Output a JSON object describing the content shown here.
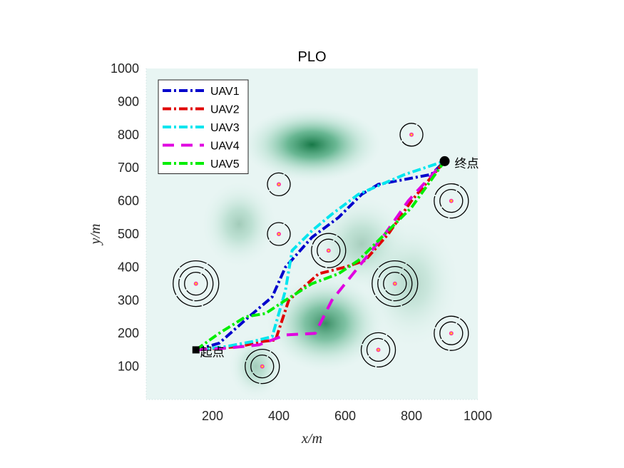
{
  "chart_data": {
    "type": "line",
    "title": "PLO",
    "xlabel": "x/m",
    "ylabel": "y/m",
    "xlim": [
      0,
      1000
    ],
    "ylim": [
      0,
      1000
    ],
    "xticks": [
      200,
      400,
      600,
      800,
      1000
    ],
    "yticks": [
      100,
      200,
      300,
      400,
      500,
      600,
      700,
      800,
      900,
      1000
    ],
    "legend_position": "top-left",
    "start": {
      "label": "起点",
      "x": 150,
      "y": 150
    },
    "goal": {
      "label": "终点",
      "x": 900,
      "y": 720
    },
    "series": [
      {
        "name": "UAV1",
        "color": "#0000cc",
        "style": "dashdot",
        "x": [
          150,
          220,
          310,
          380,
          420,
          500,
          580,
          650,
          700,
          860,
          900
        ],
        "y": [
          150,
          170,
          250,
          310,
          400,
          490,
          550,
          620,
          650,
          680,
          720
        ]
      },
      {
        "name": "UAV2",
        "color": "#e00000",
        "style": "dashdot",
        "x": [
          150,
          280,
          350,
          390,
          430,
          520,
          600,
          660,
          730,
          800,
          900
        ],
        "y": [
          150,
          160,
          175,
          180,
          300,
          380,
          400,
          420,
          500,
          600,
          720
        ]
      },
      {
        "name": "UAV3",
        "color": "#00e5ee",
        "style": "dashdot",
        "x": [
          150,
          240,
          320,
          380,
          420,
          440,
          500,
          560,
          640,
          780,
          900
        ],
        "y": [
          150,
          160,
          175,
          190,
          330,
          450,
          510,
          560,
          620,
          680,
          720
        ]
      },
      {
        "name": "UAV4",
        "color": "#e000e0",
        "style": "dashed",
        "x": [
          150,
          240,
          340,
          420,
          510,
          560,
          640,
          720,
          790,
          900
        ],
        "y": [
          150,
          155,
          165,
          195,
          200,
          300,
          400,
          500,
          600,
          720
        ]
      },
      {
        "name": "UAV5",
        "color": "#00ee00",
        "style": "dashdot",
        "x": [
          150,
          220,
          300,
          360,
          420,
          500,
          580,
          640,
          720,
          800,
          900
        ],
        "y": [
          150,
          200,
          250,
          260,
          300,
          350,
          380,
          420,
          500,
          580,
          720
        ]
      }
    ],
    "threats": [
      {
        "x": 150,
        "y": 350,
        "rings": 3
      },
      {
        "x": 350,
        "y": 100,
        "rings": 2
      },
      {
        "x": 400,
        "y": 650,
        "rings": 1
      },
      {
        "x": 400,
        "y": 500,
        "rings": 1
      },
      {
        "x": 550,
        "y": 450,
        "rings": 2
      },
      {
        "x": 700,
        "y": 150,
        "rings": 2
      },
      {
        "x": 750,
        "y": 350,
        "rings": 3
      },
      {
        "x": 800,
        "y": 800,
        "rings": 1
      },
      {
        "x": 920,
        "y": 600,
        "rings": 2
      },
      {
        "x": 920,
        "y": 200,
        "rings": 2
      }
    ],
    "terrain_peaks": [
      {
        "x": 500,
        "y": 770,
        "sx": 130,
        "sy": 70,
        "a": 0.9
      },
      {
        "x": 540,
        "y": 230,
        "sx": 110,
        "sy": 90,
        "a": 0.75
      },
      {
        "x": 280,
        "y": 530,
        "sx": 70,
        "sy": 80,
        "a": 0.3
      },
      {
        "x": 650,
        "y": 470,
        "sx": 90,
        "sy": 90,
        "a": 0.28
      },
      {
        "x": 330,
        "y": 100,
        "sx": 50,
        "sy": 60,
        "a": 0.3
      },
      {
        "x": 800,
        "y": 350,
        "sx": 90,
        "sy": 120,
        "a": 0.22
      }
    ]
  }
}
